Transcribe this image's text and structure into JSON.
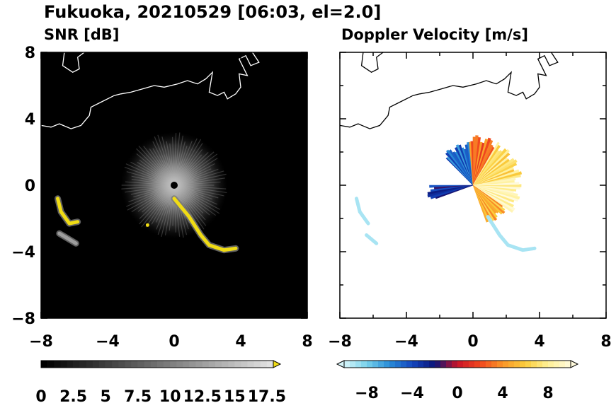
{
  "title": "Fukuoka, 20210529 [06:03, el=2.0]",
  "chart_data": [
    {
      "type": "heatmap",
      "title": "SNR [dB]",
      "xlim": [
        -8,
        8
      ],
      "ylim": [
        -8,
        8
      ],
      "xticks": [
        "-8",
        "-4",
        "0",
        "4",
        "8"
      ],
      "yticks": [
        "8",
        "4",
        "0",
        "-4",
        "-8"
      ],
      "background_color": "#000000",
      "colorbar": {
        "ticks": [
          "0",
          "2.5",
          "5",
          "7.5",
          "10",
          "12.5",
          "15",
          "17.5"
        ],
        "range": [
          0,
          18
        ],
        "extend": "max"
      },
      "echo_regions": [
        {
          "name": "near-radar clutter fan",
          "center": [
            0,
            0
          ],
          "radius": 3.2,
          "snr": 4
        },
        {
          "name": "band-1",
          "points": [
            [
              0.0,
              -0.8
            ],
            [
              0.9,
              -1.9
            ],
            [
              1.6,
              -3.0
            ],
            [
              2.1,
              -3.6
            ],
            [
              3.0,
              -3.9
            ],
            [
              3.7,
              -3.8
            ]
          ],
          "snr": 17
        },
        {
          "name": "band-2",
          "points": [
            [
              -7.0,
              -0.8
            ],
            [
              -6.8,
              -1.6
            ],
            [
              -6.3,
              -2.3
            ],
            [
              -5.8,
              -2.2
            ]
          ],
          "snr": 17
        },
        {
          "name": "band-3",
          "points": [
            [
              -6.9,
              -2.9
            ],
            [
              -6.4,
              -3.2
            ],
            [
              -5.9,
              -3.5
            ]
          ],
          "snr": 12
        },
        {
          "name": "speck",
          "points": [
            [
              -1.6,
              -2.4
            ]
          ],
          "snr": 17
        }
      ]
    },
    {
      "type": "heatmap",
      "title": "Doppler Velocity [m/s]",
      "xlim": [
        -8,
        8
      ],
      "ylim": [
        -8,
        8
      ],
      "xticks": [
        "-8",
        "-4",
        "0",
        "4",
        "8"
      ],
      "yticks": [
        "8",
        "4",
        "0",
        "-4",
        "-8"
      ],
      "background_color": "#ffffff",
      "colorbar": {
        "ticks": [
          "-8",
          "-4",
          "0",
          "4",
          "8"
        ],
        "range": [
          -10,
          10
        ],
        "extend": "both"
      },
      "velocity_sectors": [
        {
          "from_deg": 95,
          "to_deg": 135,
          "radius": 2.6,
          "velocity": -5
        },
        {
          "from_deg": 60,
          "to_deg": 95,
          "radius": 3.0,
          "velocity": 3
        },
        {
          "from_deg": 10,
          "to_deg": 60,
          "radius": 3.0,
          "velocity": 7
        },
        {
          "from_deg": -35,
          "to_deg": 10,
          "radius": 2.9,
          "velocity": 9
        },
        {
          "from_deg": -70,
          "to_deg": -35,
          "radius": 2.5,
          "velocity": 5
        },
        {
          "from_deg": 180,
          "to_deg": 200,
          "radius": 2.8,
          "velocity": -3
        }
      ],
      "echo_regions": [
        {
          "name": "band-1",
          "points": [
            [
              0.9,
              -1.9
            ],
            [
              1.6,
              -3.0
            ],
            [
              2.1,
              -3.6
            ],
            [
              3.0,
              -3.9
            ],
            [
              3.7,
              -3.8
            ]
          ],
          "velocity": -9
        },
        {
          "name": "band-2",
          "points": [
            [
              -7.0,
              -0.8
            ],
            [
              -6.8,
              -1.6
            ],
            [
              -6.3,
              -2.3
            ]
          ],
          "velocity": -9
        },
        {
          "name": "band-3",
          "points": [
            [
              -6.4,
              -3.0
            ],
            [
              -5.8,
              -3.5
            ]
          ],
          "velocity": -9
        }
      ]
    }
  ],
  "coastline": [
    [
      -8.0,
      3.6
    ],
    [
      -7.4,
      3.5
    ],
    [
      -6.9,
      3.7
    ],
    [
      -6.2,
      3.4
    ],
    [
      -5.6,
      3.6
    ],
    [
      -5.1,
      4.2
    ],
    [
      -5.0,
      4.7
    ],
    [
      -4.4,
      5.0
    ],
    [
      -3.6,
      5.4
    ],
    [
      -3.2,
      5.5
    ],
    [
      -2.6,
      5.6
    ],
    [
      -1.9,
      5.8
    ],
    [
      -1.2,
      6.0
    ],
    [
      -0.6,
      5.9
    ],
    [
      0.2,
      6.1
    ],
    [
      0.8,
      6.3
    ],
    [
      1.4,
      6.1
    ],
    [
      1.9,
      6.4
    ],
    [
      2.3,
      6.8
    ],
    [
      2.1,
      5.6
    ],
    [
      2.6,
      5.4
    ],
    [
      3.0,
      5.6
    ],
    [
      3.2,
      5.2
    ],
    [
      3.7,
      5.5
    ],
    [
      4.0,
      5.9
    ],
    [
      3.9,
      6.7
    ],
    [
      4.4,
      6.6
    ],
    [
      3.9,
      7.6
    ],
    [
      4.3,
      7.8
    ],
    [
      4.6,
      7.2
    ],
    [
      5.1,
      7.4
    ],
    [
      4.7,
      8.0
    ]
  ],
  "coastline_north": [
    [
      -6.6,
      8.0
    ],
    [
      -6.7,
      7.2
    ],
    [
      -6.1,
      6.8
    ],
    [
      -5.7,
      7.0
    ],
    [
      -5.8,
      7.7
    ],
    [
      -5.4,
      8.0
    ]
  ]
}
